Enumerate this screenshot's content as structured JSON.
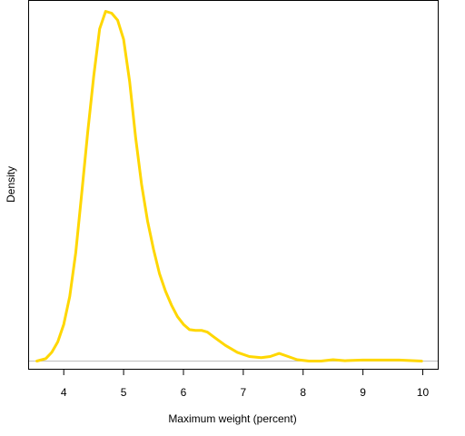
{
  "chart_data": {
    "type": "line",
    "title": "",
    "xlabel": "Maximum weight (percent)",
    "ylabel": "Density",
    "xlim": [
      3.42,
      10.25
    ],
    "ylim": [
      -0.022,
      1.03
    ],
    "x_ticks": [
      4,
      5,
      6,
      7,
      8,
      9,
      10
    ],
    "y_ticks_shown": false,
    "baseline": 0,
    "colors": {
      "line": "#FFD700",
      "baseline": "#bebebe",
      "frame": "#000000"
    },
    "series": [
      {
        "values": [
          {
            "x": 3.55,
            "y": 0.0
          },
          {
            "x": 3.7,
            "y": 0.007
          },
          {
            "x": 3.8,
            "y": 0.025
          },
          {
            "x": 3.9,
            "y": 0.055
          },
          {
            "x": 4.0,
            "y": 0.105
          },
          {
            "x": 4.1,
            "y": 0.185
          },
          {
            "x": 4.2,
            "y": 0.31
          },
          {
            "x": 4.3,
            "y": 0.48
          },
          {
            "x": 4.4,
            "y": 0.655
          },
          {
            "x": 4.5,
            "y": 0.815
          },
          {
            "x": 4.6,
            "y": 0.95
          },
          {
            "x": 4.7,
            "y": 1.0
          },
          {
            "x": 4.8,
            "y": 0.995
          },
          {
            "x": 4.9,
            "y": 0.975
          },
          {
            "x": 5.0,
            "y": 0.92
          },
          {
            "x": 5.1,
            "y": 0.8
          },
          {
            "x": 5.2,
            "y": 0.64
          },
          {
            "x": 5.3,
            "y": 0.505
          },
          {
            "x": 5.4,
            "y": 0.4
          },
          {
            "x": 5.5,
            "y": 0.32
          },
          {
            "x": 5.6,
            "y": 0.25
          },
          {
            "x": 5.7,
            "y": 0.2
          },
          {
            "x": 5.8,
            "y": 0.16
          },
          {
            "x": 5.9,
            "y": 0.127
          },
          {
            "x": 6.0,
            "y": 0.105
          },
          {
            "x": 6.1,
            "y": 0.09
          },
          {
            "x": 6.2,
            "y": 0.088
          },
          {
            "x": 6.3,
            "y": 0.088
          },
          {
            "x": 6.4,
            "y": 0.083
          },
          {
            "x": 6.5,
            "y": 0.07
          },
          {
            "x": 6.7,
            "y": 0.045
          },
          {
            "x": 6.9,
            "y": 0.025
          },
          {
            "x": 7.1,
            "y": 0.013
          },
          {
            "x": 7.3,
            "y": 0.01
          },
          {
            "x": 7.45,
            "y": 0.013
          },
          {
            "x": 7.6,
            "y": 0.022
          },
          {
            "x": 7.75,
            "y": 0.013
          },
          {
            "x": 7.9,
            "y": 0.004
          },
          {
            "x": 8.1,
            "y": 0.0
          },
          {
            "x": 8.3,
            "y": 0.0
          },
          {
            "x": 8.5,
            "y": 0.004
          },
          {
            "x": 8.7,
            "y": 0.001
          },
          {
            "x": 9.0,
            "y": 0.003
          },
          {
            "x": 9.3,
            "y": 0.003
          },
          {
            "x": 9.6,
            "y": 0.003
          },
          {
            "x": 9.98,
            "y": 0.0
          }
        ]
      }
    ]
  }
}
